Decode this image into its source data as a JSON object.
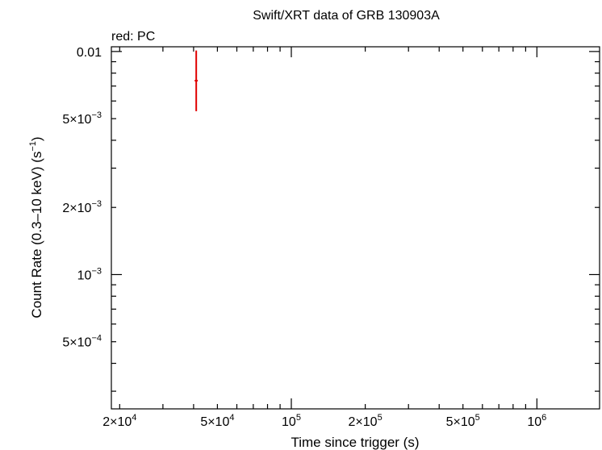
{
  "chart_data": {
    "type": "scatter",
    "title": "Swift/XRT data of GRB 130903A",
    "subtitle": "red: PC",
    "xlabel": "Time since trigger (s)",
    "ylabel_main": "Count Rate (0.3–10 keV) (s",
    "ylabel_sup": "−1",
    "ylabel_close": ")",
    "x_scale": "log",
    "y_scale": "log",
    "xlim": [
      18500,
      1800000
    ],
    "ylim": [
      0.00025,
      0.0105
    ],
    "grid": false,
    "x_ticks": [
      {
        "value": 20000,
        "mant": "2×10",
        "exp": "4"
      },
      {
        "value": 50000,
        "mant": "5×10",
        "exp": "4"
      },
      {
        "value": 100000,
        "mant": "10",
        "exp": "5"
      },
      {
        "value": 200000,
        "mant": "2×10",
        "exp": "5"
      },
      {
        "value": 500000,
        "mant": "5×10",
        "exp": "5"
      },
      {
        "value": 1000000,
        "mant": "10",
        "exp": "6"
      }
    ],
    "y_ticks": [
      {
        "value": 0.01,
        "mant": "0.01",
        "exp": ""
      },
      {
        "value": 0.005,
        "mant": "5×10",
        "exp": "−3"
      },
      {
        "value": 0.002,
        "mant": "2×10",
        "exp": "−3"
      },
      {
        "value": 0.001,
        "mant": "10",
        "exp": "−3"
      },
      {
        "value": 0.0005,
        "mant": "5×10",
        "exp": "−4"
      }
    ],
    "series": [
      {
        "color": "#e00000",
        "points": [
          {
            "x": 41000,
            "y": 0.0074,
            "xerr_low": 40400,
            "xerr_high": 41600,
            "yerr_low": 0.0054,
            "yerr_high": 0.0101
          }
        ]
      }
    ]
  }
}
